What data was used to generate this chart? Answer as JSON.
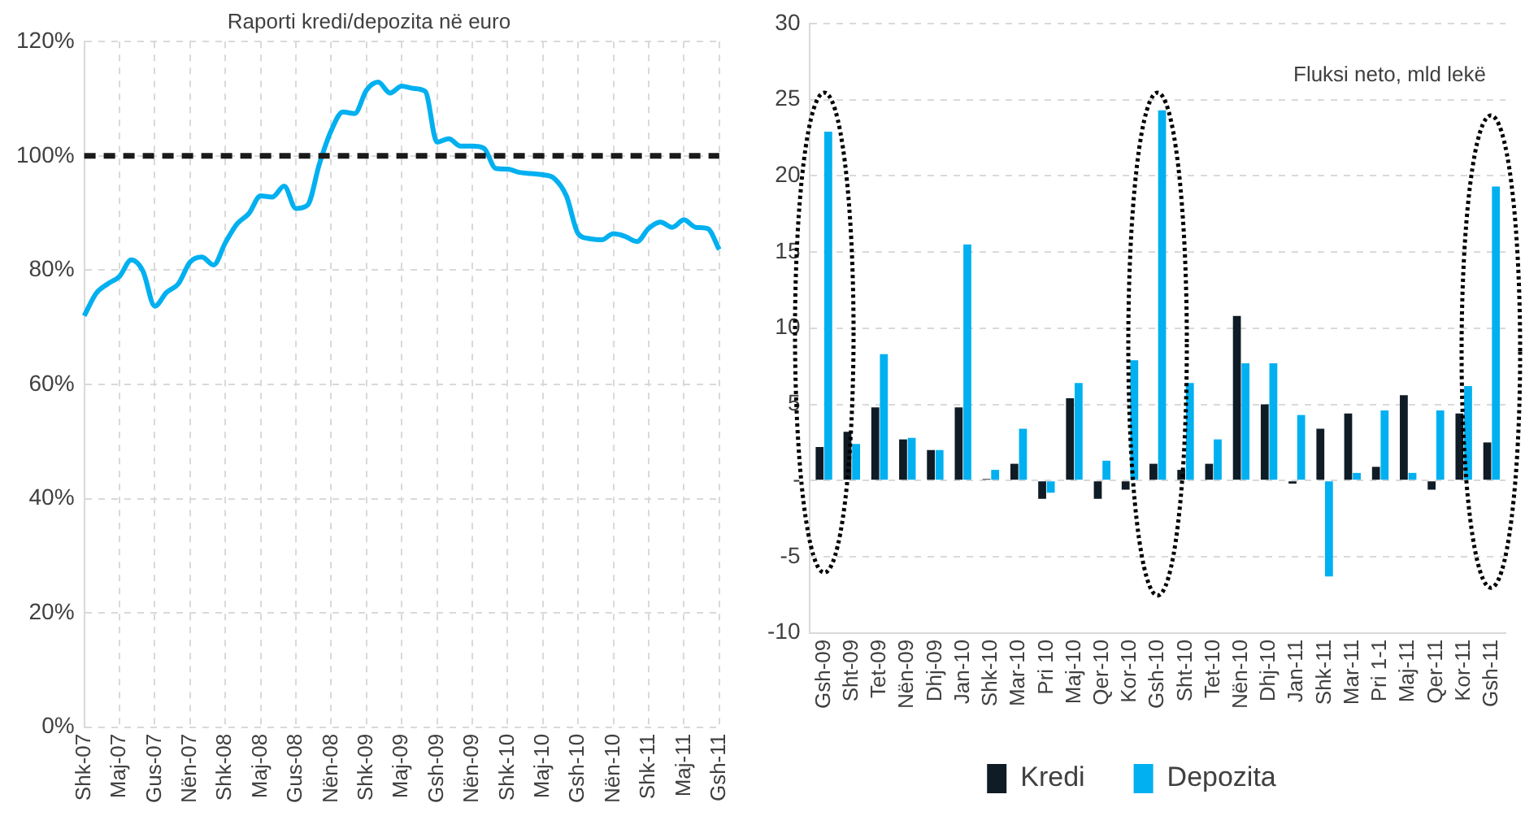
{
  "chart_data": [
    {
      "type": "line",
      "title": "Raporti kredi/depozita në euro",
      "categories": [
        "Shk-07",
        null,
        null,
        "Maj-07",
        null,
        null,
        "Gus-07",
        null,
        null,
        "Nën-07",
        null,
        null,
        "Shk-08",
        null,
        null,
        "Maj-08",
        null,
        null,
        "Gus-08",
        null,
        null,
        "Nën-08",
        null,
        null,
        "Shk-09",
        null,
        null,
        "Maj-09",
        null,
        null,
        "Gsh-09",
        null,
        null,
        "Nën-09",
        null,
        null,
        "Shk-10",
        null,
        null,
        "Maj-10",
        null,
        null,
        "Gsh-10",
        null,
        null,
        "Nën-10",
        null,
        null,
        "Shk-11",
        null,
        null,
        "Maj-11",
        null,
        null,
        "Gsh-11"
      ],
      "series": [
        {
          "color": "#00b0f0",
          "values": [
            72.0,
            75.9,
            77.6,
            78.9,
            81.8,
            79.8,
            73.7,
            76.1,
            77.6,
            81.4,
            82.3,
            80.9,
            84.8,
            88.1,
            89.9,
            93.0,
            92.8,
            94.7,
            90.8,
            91.4,
            98.6,
            104.4,
            107.7,
            107.4,
            111.5,
            112.9,
            111.0,
            112.2,
            111.8,
            111.3,
            102.4,
            103.0,
            101.7,
            101.7,
            101.3,
            97.8,
            97.7,
            97.1,
            96.9,
            96.7,
            96.0,
            93.0,
            86.4,
            85.5,
            85.3,
            86.4,
            85.9,
            85.0,
            87.3,
            88.4,
            87.5,
            88.8,
            87.5,
            87.3,
            83.6
          ]
        }
      ],
      "ylim": [
        0,
        120
      ],
      "yticks": [
        {
          "value": 0,
          "label": "0%"
        },
        {
          "value": 20,
          "label": "20%"
        },
        {
          "value": 40,
          "label": "40%"
        },
        {
          "value": 60,
          "label": "60%"
        },
        {
          "value": 80,
          "label": "80%"
        },
        {
          "value": 100,
          "label": "100%"
        },
        {
          "value": 120,
          "label": "120%"
        }
      ],
      "ref_lines": [
        {
          "axis": "y",
          "value": 100,
          "color": "#1a1a1a",
          "line_style": "dashed"
        }
      ],
      "grid": true,
      "marker": "none",
      "line_style": "solid"
    },
    {
      "type": "bar",
      "categories": [
        "Gsh-09",
        "Sht-09",
        "Tet-09",
        "Nën-09",
        "Dhj-09",
        "Jan-10",
        "Shk-10",
        "Mar-10",
        "Pri 10",
        "Maj-10",
        "Qer-10",
        "Kor-10",
        "Gsh-10",
        "Sht-10",
        "Tet-10",
        "Nën-10",
        "Dhj-10",
        "Jan-11",
        "Shk-11",
        "Mar-11",
        "Pri 1-1",
        "Maj-11",
        "Qer-11",
        "Kor-11",
        "Gsh-11"
      ],
      "series": [
        {
          "name": "Kredi",
          "color": "#0f1c26",
          "values": [
            2.2,
            3.2,
            4.8,
            2.7,
            2.0,
            4.8,
            0.1,
            1.1,
            -1.2,
            5.4,
            -1.2,
            -0.6,
            1.1,
            0.7,
            1.1,
            10.8,
            5.0,
            -0.2,
            3.4,
            4.4,
            0.9,
            5.6,
            -0.6,
            4.4,
            2.5
          ]
        },
        {
          "name": "Depozita",
          "color": "#00b0f0",
          "values": [
            22.9,
            2.4,
            8.3,
            2.8,
            2.0,
            15.5,
            0.7,
            3.4,
            -0.8,
            6.4,
            1.3,
            7.9,
            24.3,
            6.4,
            2.7,
            7.7,
            7.7,
            4.3,
            -6.3,
            0.5,
            4.6,
            0.5,
            4.6,
            6.2,
            19.3
          ]
        }
      ],
      "ylim": [
        -10,
        30
      ],
      "yticks": [
        -10,
        -5,
        {
          "value": 0,
          "label": "-"
        },
        5,
        10,
        15,
        20,
        25,
        30
      ],
      "annotations": [
        "Fluksi neto, mld lekë"
      ],
      "grid": "y",
      "legend": "bottom"
    }
  ]
}
